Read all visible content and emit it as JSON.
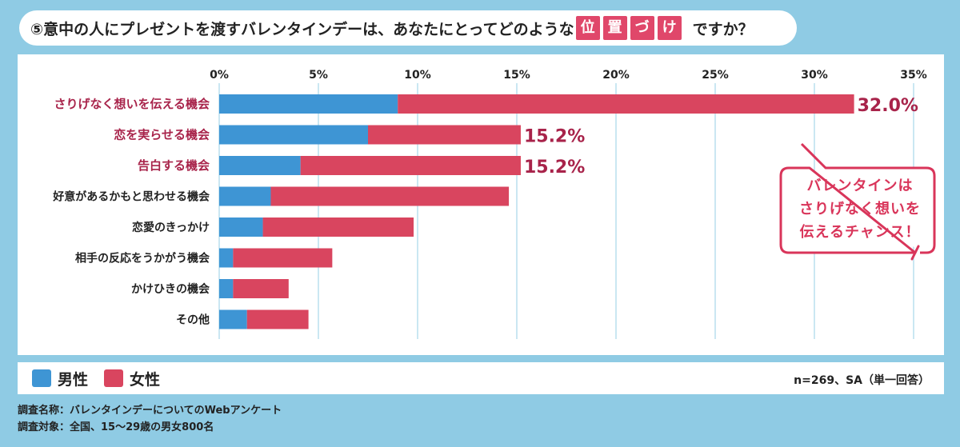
{
  "title": {
    "prefix": "⑤意中の人にプレゼントを渡すバレンタインデーは、あなたにとってどのような",
    "highlight": [
      "位",
      "置",
      "づ",
      "け"
    ],
    "suffix": "ですか？"
  },
  "legend": {
    "male_label": "男性",
    "female_label": "女性",
    "sample_note": "n=269、SA（単一回答）"
  },
  "callout": {
    "line1": "バレンタインは",
    "line2": "さりげなく想いを",
    "line3": "伝えるチャンス！"
  },
  "footnotes": {
    "survey_name": "調査名称：バレンタインデーについてのWebアンケート",
    "survey_target": "調査対象：全国、15～29歳の男女800名"
  },
  "colors": {
    "male": "#3e95d4",
    "female": "#d9455f",
    "highlight_label": "#a8234a",
    "grid": "#a8d7ea"
  },
  "chart_data": {
    "type": "bar",
    "orientation": "horizontal",
    "stacked": true,
    "xlim": [
      0,
      35
    ],
    "x_ticks": [
      "0%",
      "5%",
      "10%",
      "15%",
      "20%",
      "25%",
      "30%",
      "35%"
    ],
    "categories": [
      "さりげなく想いを伝える機会",
      "恋を実らせる機会",
      "告白する機会",
      "好意があるかもと思わせる機会",
      "恋愛のきっかけ",
      "相手の反応をうかがう機会",
      "かけひきの機会",
      "その他"
    ],
    "highlighted_categories": [
      0,
      1,
      2
    ],
    "series": [
      {
        "name": "男性",
        "values": [
          9.0,
          7.5,
          4.1,
          2.6,
          2.2,
          0.7,
          0.7,
          1.4
        ]
      },
      {
        "name": "女性",
        "values": [
          23.0,
          7.7,
          11.1,
          12.0,
          7.6,
          5.0,
          2.8,
          3.1
        ]
      }
    ],
    "data_labels": [
      "32.0%",
      "15.2%",
      "15.2%",
      "",
      "",
      "",
      "",
      ""
    ],
    "grid": true
  }
}
